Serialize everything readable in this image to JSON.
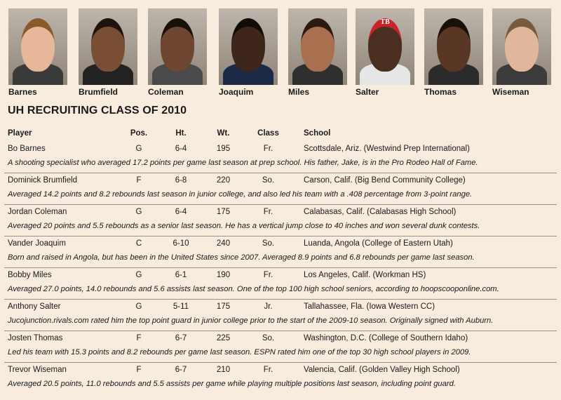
{
  "photos": [
    {
      "name": "Barnes",
      "skin": "#e7b79a",
      "hair": "#8a5a2b",
      "shirt": "#3a3a3a"
    },
    {
      "name": "Brumfield",
      "skin": "#7a4e35",
      "hair": "#1f140d",
      "shirt": "#222222"
    },
    {
      "name": "Coleman",
      "skin": "#6e4632",
      "hair": "#1a110b",
      "shirt": "#4a4a4a"
    },
    {
      "name": "Joaquim",
      "skin": "#3e261a",
      "hair": "#120c08",
      "shirt": "#1c2b45"
    },
    {
      "name": "Miles",
      "skin": "#a8704e",
      "hair": "#2a1a10",
      "shirt": "#2f2f2f"
    },
    {
      "name": "Salter",
      "skin": "#4a2e1f",
      "hair": "#c6232b",
      "shirt": "#e6e6e6",
      "cap_text": "TB"
    },
    {
      "name": "Thomas",
      "skin": "#5a3624",
      "hair": "#1a100a",
      "shirt": "#2b2b2b"
    },
    {
      "name": "Wiseman",
      "skin": "#e0b79b",
      "hair": "#7a5a3c",
      "shirt": "#3b3b3b"
    }
  ],
  "title": "UH RECRUITING CLASS OF 2010",
  "headers": {
    "player": "Player",
    "pos": "Pos.",
    "ht": "Ht.",
    "wt": "Wt.",
    "class": "Class",
    "school": "School"
  },
  "players": [
    {
      "name": "Bo Barnes",
      "pos": "G",
      "ht": "6-4",
      "wt": "195",
      "class": "Fr.",
      "school": "Scottsdale, Ariz. (Westwind Prep International)",
      "desc": "A shooting specialist who averaged 17.2 points per game last season at prep school. His father, Jake, is in the Pro Rodeo Hall of Fame."
    },
    {
      "name": "Dominick Brumfield",
      "pos": "F",
      "ht": "6-8",
      "wt": "220",
      "class": "So.",
      "school": "Carson, Calif. (Big Bend Community College)",
      "desc": "Averaged 14.2 points and 8.2 rebounds last season in junior college, and also led his team with a .408 percentage from 3-point range."
    },
    {
      "name": "Jordan Coleman",
      "pos": "G",
      "ht": "6-4",
      "wt": "175",
      "class": "Fr.",
      "school": "Calabasas, Calif. (Calabasas High School)",
      "desc": "Averaged 20 points and 5.5 rebounds as a senior last season. He has a vertical jump close to 40 inches and won several dunk contests."
    },
    {
      "name": "Vander Joaquim",
      "pos": "C",
      "ht": "6-10",
      "wt": "240",
      "class": "So.",
      "school": "Luanda, Angola (College of Eastern Utah)",
      "desc": "Born and raised in Angola, but has been in the United States since 2007. Averaged 8.9 points and 6.8 rebounds per game last season."
    },
    {
      "name": "Bobby Miles",
      "pos": "G",
      "ht": "6-1",
      "wt": "190",
      "class": "Fr.",
      "school": "Los Angeles, Calif. (Workman HS)",
      "desc": "Averaged 27.0 points, 14.0 rebounds and 5.6 assists last season. One of the top 100 high school seniors, according to hoopscooponline.com."
    },
    {
      "name": "Anthony Salter",
      "pos": "G",
      "ht": "5-11",
      "wt": "175",
      "class": "Jr.",
      "school": "Tallahassee, Fla. (Iowa Western CC)",
      "desc": "Jucojunction.rivals.com rated him the top point guard in junior college prior to the start of the 2009-10 season. Originally signed with Auburn."
    },
    {
      "name": "Josten Thomas",
      "pos": "F",
      "ht": "6-7",
      "wt": "225",
      "class": "So.",
      "school": "Washington, D.C. (College of Southern Idaho)",
      "desc": "Led his team with 15.3 points and 8.2 rebounds per game last season. ESPN rated him one of the top 30 high school players in 2009."
    },
    {
      "name": "Trevor Wiseman",
      "pos": "F",
      "ht": "6-7",
      "wt": "210",
      "class": "Fr.",
      "school": "Valencia, Calif. (Golden Valley High School)",
      "desc": "Averaged 20.5 points, 11.0 rebounds and 5.5 assists per game while playing multiple positions last season, including point guard."
    }
  ]
}
